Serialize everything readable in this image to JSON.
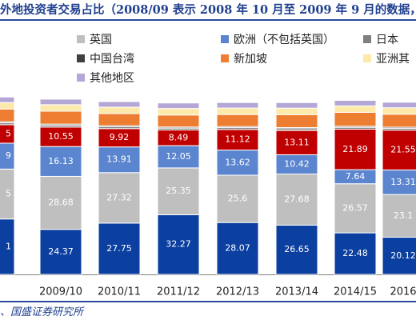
{
  "title": "外地投资者交易占比（2008/09 表示 2008 年 10 月至 2009 年 9 月的数据，",
  "source": "、国盛证券研究所",
  "colors": {
    "title": "#1f3f8f",
    "rule": "#2b4aa0"
  },
  "chart_data": {
    "type": "bar",
    "stacked": true,
    "categories": [
      "09",
      "2009/10",
      "2010/11",
      "2011/12",
      "2012/13",
      "2013/14",
      "2014/15",
      "2016"
    ],
    "series": [
      {
        "name": "英国",
        "color": "#bfbfbf",
        "values": [
          null,
          28.68,
          27.32,
          25.35,
          25.6,
          27.68,
          26.57,
          23.1
        ],
        "labels": [
          "",
          "28.68",
          "27.32",
          "25.35",
          "25.6",
          "27.68",
          "26.57",
          "23.1"
        ]
      },
      {
        "name": "欧洲（不包括英国）",
        "color": "#5b86cf",
        "values": [
          null,
          16.13,
          13.91,
          12.05,
          13.62,
          10.42,
          7.64,
          13.31
        ],
        "labels": [
          "",
          "16.13",
          "13.91",
          "12.05",
          "13.62",
          "10.42",
          "7.64",
          "13.31"
        ]
      },
      {
        "name": "日本",
        "color": "#7f7f7f",
        "values": [
          null,
          1.0,
          1.0,
          1.0,
          1.0,
          1.0,
          1.0,
          1.0
        ],
        "labels": [
          "",
          "",
          "",
          "",
          "",
          "",
          "",
          ""
        ]
      },
      {
        "name": "中国台湾",
        "color": "#404040",
        "values": [
          null,
          0.6,
          0.6,
          0.6,
          0.6,
          0.6,
          0.6,
          0.6
        ],
        "labels": [
          "",
          "",
          "",
          "",
          "",
          "",
          "",
          ""
        ]
      },
      {
        "name": "新加坡",
        "color": "#ed7d31",
        "values": [
          null,
          7.0,
          6.5,
          6.5,
          6.5,
          7.0,
          7.5,
          7.0
        ],
        "labels": [
          "",
          "",
          "",
          "",
          "",
          "",
          "",
          ""
        ]
      },
      {
        "name": "亚洲其",
        "color": "#fde9a9",
        "values": [
          null,
          3.5,
          3.5,
          3.5,
          3.5,
          3.5,
          3.5,
          3.5
        ],
        "labels": [
          "",
          "",
          "",
          "",
          "",
          "",
          "",
          ""
        ]
      },
      {
        "name": "其他地区",
        "color": "#b4a7d6",
        "values": [
          null,
          3.0,
          3.0,
          3.0,
          3.0,
          3.0,
          3.0,
          3.0
        ],
        "labels": [
          "",
          "",
          "",
          "",
          "",
          "",
          "",
          ""
        ]
      }
    ],
    "bottom_series": {
      "name": "",
      "color": "#0b3fa0",
      "values": [
        null,
        24.37,
        27.75,
        32.27,
        28.07,
        26.65,
        22.48,
        20.12
      ],
      "labels": [
        "",
        "24.37",
        "27.75",
        "32.27",
        "28.07",
        "26.65",
        "22.48",
        "20.12"
      ]
    },
    "red_series": {
      "name": "",
      "color": "#c00000",
      "values": [
        null,
        10.55,
        9.92,
        8.49,
        11.12,
        13.11,
        21.89,
        21.55
      ],
      "labels": [
        "",
        "10.55",
        "9.92",
        "8.49",
        "11.12",
        "13.11",
        "21.89",
        "21.55"
      ]
    },
    "first_partial": {
      "labels": {
        "bottom": "1",
        "grey": "5",
        "blue": "9",
        "red": "5"
      }
    },
    "ylim": [
      0,
      100
    ],
    "legend": "top"
  }
}
